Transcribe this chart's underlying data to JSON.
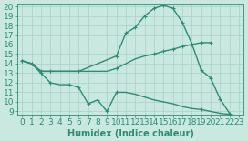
{
  "line1_x": [
    0,
    1,
    2,
    3,
    4,
    5,
    6,
    10,
    11,
    12,
    13,
    14,
    15,
    16,
    17,
    18,
    19,
    20,
    21,
    22
  ],
  "line1_y": [
    14.3,
    14.0,
    13.2,
    13.2,
    13.2,
    13.2,
    13.2,
    14.8,
    17.2,
    17.8,
    19.0,
    19.8,
    20.1,
    19.8,
    18.3,
    16.1,
    13.3,
    12.5,
    10.3,
    8.8
  ],
  "line2_x": [
    0,
    1,
    2,
    3,
    4,
    5,
    6,
    7,
    8,
    9,
    10,
    11,
    12,
    13,
    14,
    15,
    16,
    17,
    18,
    19,
    20
  ],
  "line2_y": [
    14.3,
    14.0,
    13.2,
    13.2,
    13.2,
    13.2,
    13.2,
    13.2,
    13.2,
    13.2,
    13.5,
    14.0,
    14.5,
    14.8,
    15.0,
    15.3,
    15.5,
    15.8,
    16.0,
    16.2,
    16.2
  ],
  "line3_x": [
    0,
    1,
    2,
    3,
    4,
    5,
    6,
    7,
    8,
    9,
    10,
    11,
    12,
    13,
    14,
    15,
    16,
    17,
    18,
    19,
    20,
    21,
    22,
    23
  ],
  "line3_y": [
    14.3,
    14.0,
    13.0,
    12.0,
    11.8,
    11.8,
    11.5,
    9.8,
    10.2,
    9.0,
    11.0,
    11.0,
    10.8,
    10.5,
    10.2,
    10.0,
    9.8,
    9.5,
    9.3,
    9.2,
    9.0,
    8.8,
    8.7,
    8.5
  ],
  "line1_markers_x": [
    0,
    1,
    2,
    6,
    10,
    11,
    12,
    13,
    14,
    15,
    16,
    17,
    18,
    19,
    20,
    21,
    22
  ],
  "line1_markers_y": [
    14.3,
    14.0,
    13.2,
    13.2,
    14.8,
    17.2,
    17.8,
    19.0,
    19.8,
    20.1,
    19.8,
    18.3,
    16.1,
    13.3,
    12.5,
    10.3,
    8.8
  ],
  "line2_markers_x": [
    0,
    1,
    3,
    10,
    14,
    15,
    16,
    17,
    18,
    19,
    20
  ],
  "line2_markers_y": [
    14.3,
    14.0,
    13.2,
    13.5,
    15.0,
    15.3,
    15.5,
    15.8,
    16.0,
    16.2,
    16.2
  ],
  "line3_markers_x": [
    2,
    3,
    5,
    6,
    7,
    8,
    9,
    10,
    19,
    22,
    23
  ],
  "line3_markers_y": [
    13.0,
    12.0,
    11.8,
    11.5,
    9.8,
    10.2,
    9.0,
    11.0,
    9.2,
    8.7,
    8.5
  ],
  "color": "#2e8b74",
  "background_color": "#c8e8e0",
  "grid_color": "#aacfc8",
  "xlabel": "Humidex (Indice chaleur)",
  "xlim": [
    -0.5,
    23.5
  ],
  "ylim": [
    8.7,
    20.3
  ],
  "yticks": [
    9,
    10,
    11,
    12,
    13,
    14,
    15,
    16,
    17,
    18,
    19,
    20
  ],
  "xticks": [
    0,
    1,
    2,
    3,
    4,
    5,
    6,
    7,
    8,
    9,
    10,
    11,
    12,
    13,
    14,
    15,
    16,
    17,
    18,
    19,
    20,
    21,
    22,
    23
  ],
  "font_size": 6.5,
  "linewidth": 1.0,
  "markersize": 3.5
}
